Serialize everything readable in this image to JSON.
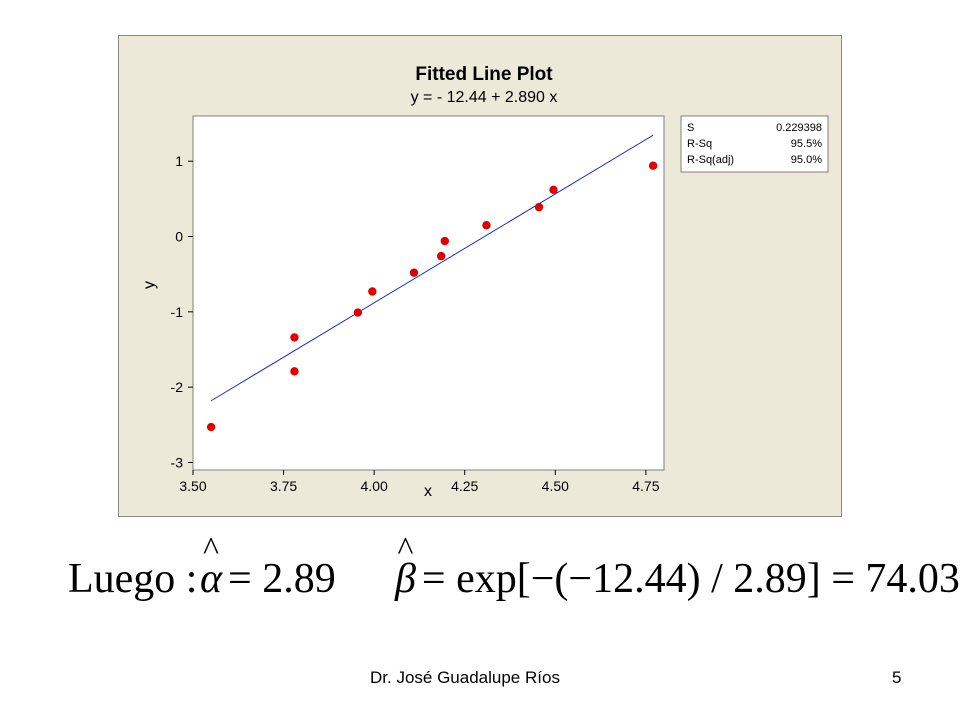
{
  "chart_data": {
    "type": "scatter",
    "title": "Fitted Line Plot",
    "subtitle": "y = - 12.44 + 2.890 x",
    "xlabel": "x",
    "ylabel": "y",
    "xlim": [
      3.5,
      4.8
    ],
    "ylim": [
      -3.1,
      1.6
    ],
    "xticks": [
      3.5,
      3.75,
      4.0,
      4.25,
      4.5,
      4.75
    ],
    "xtick_labels": [
      "3.50",
      "3.75",
      "4.00",
      "4.25",
      "4.50",
      "4.75"
    ],
    "yticks": [
      1,
      0,
      -1,
      -2,
      -3
    ],
    "ytick_labels": [
      "1",
      "0",
      "-1",
      "-2",
      "-3"
    ],
    "grid": false,
    "points": [
      {
        "x": 3.55,
        "y": -2.53
      },
      {
        "x": 3.78,
        "y": -1.34
      },
      {
        "x": 3.78,
        "y": -1.79
      },
      {
        "x": 3.955,
        "y": -1.01
      },
      {
        "x": 3.995,
        "y": -0.73
      },
      {
        "x": 4.11,
        "y": -0.48
      },
      {
        "x": 4.185,
        "y": -0.26
      },
      {
        "x": 4.195,
        "y": -0.06
      },
      {
        "x": 4.31,
        "y": 0.15
      },
      {
        "x": 4.455,
        "y": 0.39
      },
      {
        "x": 4.495,
        "y": 0.62
      },
      {
        "x": 4.77,
        "y": 0.94
      }
    ],
    "fit_line": {
      "intercept": -12.44,
      "slope": 2.89,
      "x_range": [
        3.55,
        4.77
      ]
    },
    "stats": [
      {
        "label": "S",
        "value": "0.229398"
      },
      {
        "label": "R-Sq",
        "value": "95.5%"
      },
      {
        "label": "R-Sq(adj)",
        "value": "95.0%"
      }
    ],
    "colors": {
      "points": "#e00000",
      "fit_line": "#1a2fd6",
      "plot_bg": "#ffffff",
      "frame_bg": "#ece9d8"
    }
  },
  "formulas": {
    "lead": "Luego :",
    "alpha_symbol": "α",
    "alpha_rhs": "= 2.89",
    "beta_symbol": "β",
    "beta_rhs": "= exp[−(−12.44) / 2.89] = 74.032",
    "hat": "^"
  },
  "footer": {
    "author": "Dr. José Guadalupe Ríos",
    "page_number": "5"
  }
}
